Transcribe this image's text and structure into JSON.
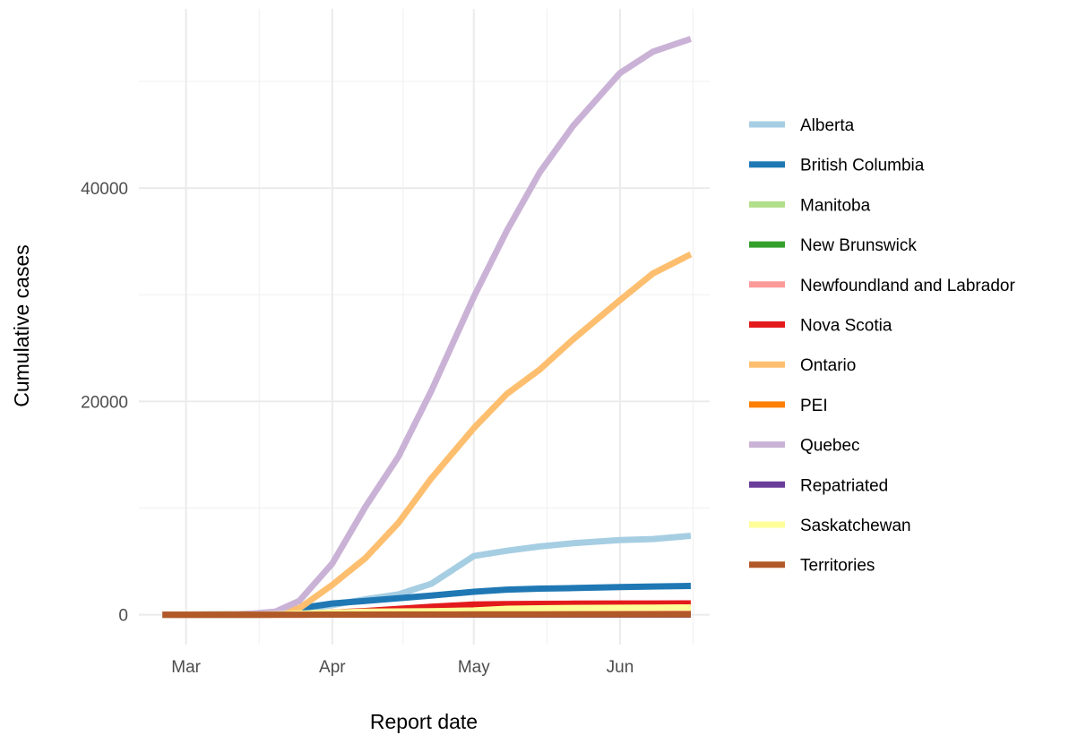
{
  "chart_data": {
    "type": "line",
    "title": "",
    "xlabel": "Report date",
    "ylabel": "Cumulative cases",
    "x_ticks": [
      "Mar",
      "Apr",
      "May",
      "Jun"
    ],
    "x_tick_dates": [
      "2020-03-01",
      "2020-04-01",
      "2020-05-01",
      "2020-06-01"
    ],
    "y_ticks": [
      0,
      20000,
      40000
    ],
    "xlim": [
      "2020-02-20",
      "2020-06-20"
    ],
    "ylim": [
      -2800,
      56800
    ],
    "grid": true,
    "legend_position": "right",
    "x": [
      "2020-02-25",
      "2020-03-10",
      "2020-03-15",
      "2020-03-20",
      "2020-03-25",
      "2020-04-01",
      "2020-04-08",
      "2020-04-15",
      "2020-04-22",
      "2020-05-01",
      "2020-05-08",
      "2020-05-15",
      "2020-05-22",
      "2020-06-01",
      "2020-06-08",
      "2020-06-16"
    ],
    "series": [
      {
        "name": "Alberta",
        "color": "#a6cee3",
        "values": [
          0,
          20,
          60,
          200,
          450,
          900,
          1450,
          1900,
          2900,
          5500,
          6000,
          6400,
          6700,
          7000,
          7100,
          7400
        ]
      },
      {
        "name": "British Columbia",
        "color": "#1f78b4",
        "values": [
          0,
          30,
          80,
          250,
          600,
          1050,
          1300,
          1550,
          1800,
          2150,
          2350,
          2450,
          2500,
          2600,
          2650,
          2700
        ]
      },
      {
        "name": "Manitoba",
        "color": "#b2df8a",
        "values": [
          0,
          0,
          5,
          20,
          40,
          100,
          200,
          250,
          260,
          270,
          280,
          285,
          290,
          295,
          300,
          305
        ]
      },
      {
        "name": "New Brunswick",
        "color": "#33a02c",
        "values": [
          0,
          0,
          2,
          10,
          20,
          80,
          110,
          115,
          118,
          120,
          120,
          121,
          121,
          122,
          125,
          130
        ]
      },
      {
        "name": "Newfoundland and Labrador",
        "color": "#fb9a99",
        "values": [
          0,
          0,
          1,
          5,
          30,
          150,
          230,
          250,
          255,
          258,
          260,
          260,
          260,
          261,
          261,
          261
        ]
      },
      {
        "name": "Nova Scotia",
        "color": "#e31a1c",
        "values": [
          0,
          0,
          5,
          20,
          80,
          200,
          350,
          550,
          750,
          950,
          1000,
          1020,
          1040,
          1050,
          1055,
          1060
        ]
      },
      {
        "name": "Ontario",
        "color": "#fdbf6f",
        "values": [
          0,
          40,
          100,
          200,
          600,
          2800,
          5300,
          8600,
          12800,
          17500,
          20700,
          23000,
          25800,
          29500,
          32000,
          33800
        ]
      },
      {
        "name": "PEI",
        "color": "#ff7f00",
        "values": [
          0,
          0,
          1,
          2,
          5,
          20,
          25,
          26,
          26,
          27,
          27,
          27,
          27,
          27,
          27,
          27
        ]
      },
      {
        "name": "Quebec",
        "color": "#cab2d6",
        "values": [
          0,
          20,
          100,
          300,
          1300,
          4800,
          10100,
          14800,
          21000,
          29800,
          36000,
          41500,
          45800,
          50800,
          52800,
          54000
        ]
      },
      {
        "name": "Repatriated",
        "color": "#6a3d9a",
        "values": [
          0,
          0,
          0,
          13,
          13,
          13,
          13,
          13,
          13,
          13,
          13,
          13,
          13,
          13,
          13,
          13
        ]
      },
      {
        "name": "Saskatchewan",
        "color": "#ffff99",
        "values": [
          0,
          0,
          5,
          40,
          100,
          200,
          280,
          310,
          330,
          400,
          560,
          600,
          630,
          650,
          660,
          680
        ]
      },
      {
        "name": "Territories",
        "color": "#b15928",
        "values": [
          0,
          0,
          0,
          0,
          5,
          10,
          15,
          20,
          22,
          25,
          25,
          25,
          25,
          25,
          25,
          25
        ]
      }
    ]
  }
}
